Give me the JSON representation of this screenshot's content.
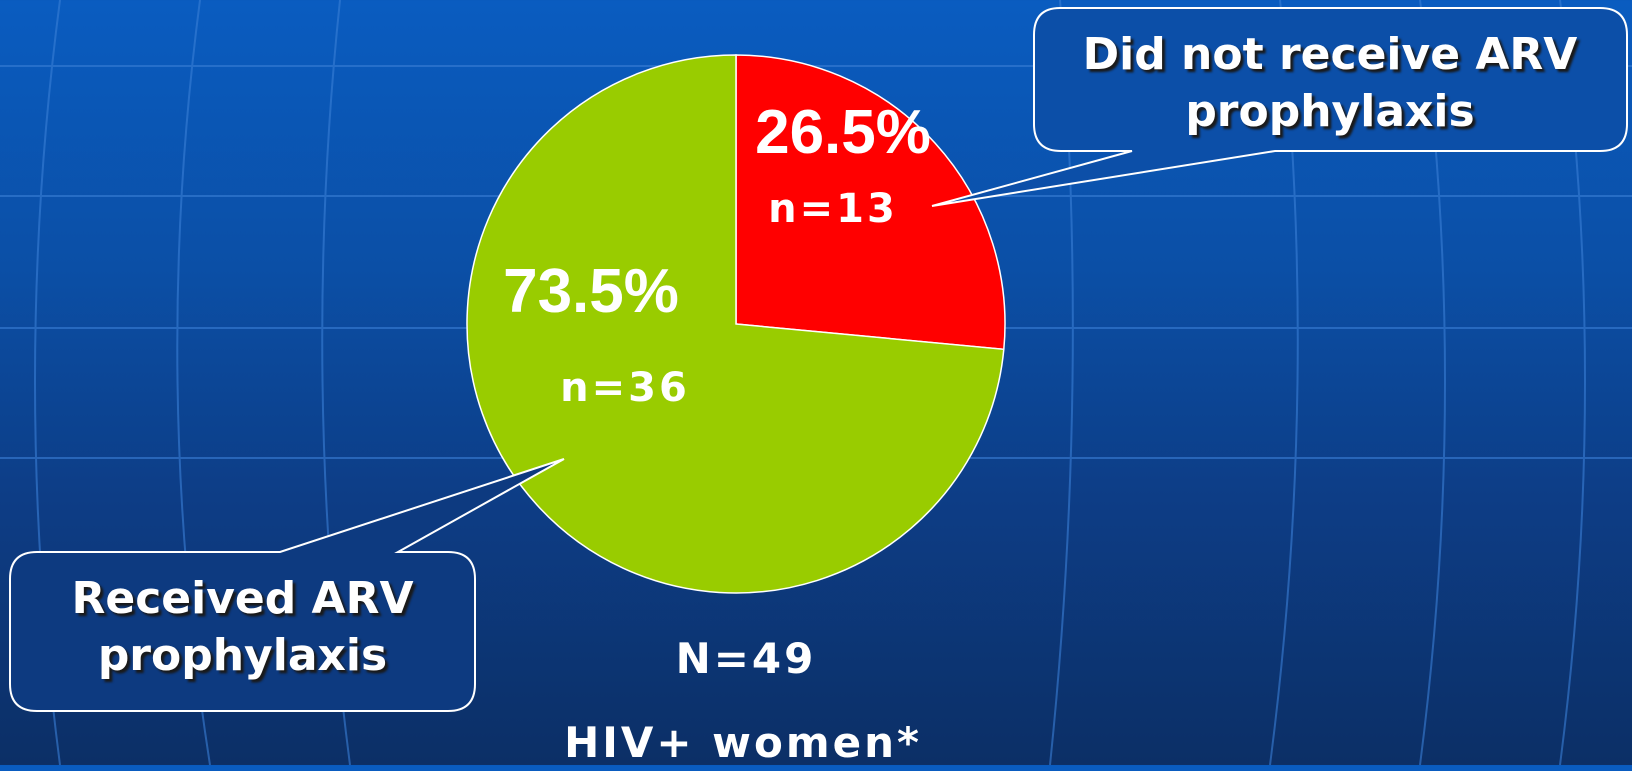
{
  "chart_data": {
    "type": "pie",
    "categories": [
      "Did not receive ARV prophylaxis",
      "Received ARV prophylaxis"
    ],
    "values": [
      26.5,
      73.5
    ],
    "value_labels": [
      "26.5%",
      "73.5%"
    ],
    "count_labels": [
      "n=13",
      "n=36"
    ],
    "colors": [
      "#ff0000",
      "#99cc00"
    ],
    "annotations": [
      "N=49",
      "HIV+ women*"
    ]
  }
}
